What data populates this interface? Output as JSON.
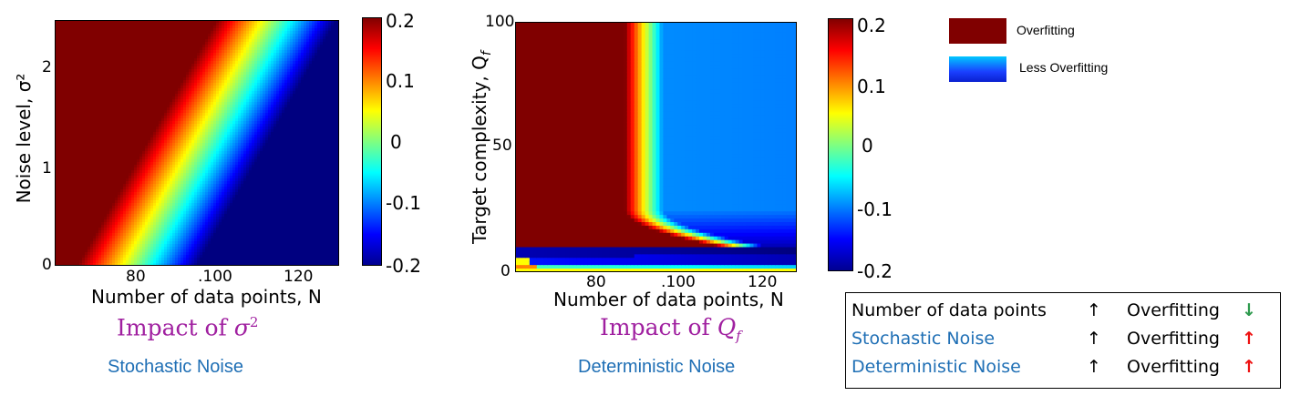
{
  "chart_data": [
    {
      "type": "heatmap",
      "title": "",
      "xlabel": "Number of data points, N",
      "ylabel": "Noise level, σ²",
      "xlim": [
        60,
        130
      ],
      "ylim": [
        0,
        2.5
      ],
      "x_ticks": [
        "80",
        ".100",
        "120"
      ],
      "y_ticks": [
        "0",
        "1",
        "2"
      ],
      "colorbar": {
        "range": [
          -0.2,
          0.2
        ],
        "ticks": [
          "0.2",
          "0.1",
          "0",
          "-0.1",
          "-0.2"
        ],
        "colormap": "jet"
      },
      "caption_prefix": "Impact of ",
      "caption_symbol": "σ",
      "caption_sup": "2",
      "subtitle": "Stochastic Noise"
    },
    {
      "type": "heatmap",
      "title": "",
      "xlabel": "Number of data points, N",
      "ylabel": "Target complexity, Q",
      "ylabel_sub": "f",
      "xlim": [
        60,
        130
      ],
      "ylim": [
        0,
        100
      ],
      "x_ticks": [
        "80",
        ".100",
        "120"
      ],
      "y_ticks": [
        "0",
        "50",
        "100"
      ],
      "colorbar": {
        "range": [
          -0.2,
          0.2
        ],
        "ticks": [
          "0.2",
          "0.1",
          "0",
          "-0.1",
          "-0.2"
        ],
        "colormap": "jet"
      },
      "caption_prefix": "Impact of ",
      "caption_symbol": "Q",
      "caption_sub": "f",
      "subtitle": "Deterministic Noise"
    }
  ],
  "legend": {
    "items": [
      {
        "label": "Overfitting",
        "color": "#800000"
      },
      {
        "label": "Less Overfitting",
        "color": "#1a40ff"
      }
    ]
  },
  "summary": {
    "rows": [
      {
        "label": "Number of data points",
        "arrow1": "↑",
        "result": "Overfitting",
        "arrow2": "↓",
        "label_color": "#000000",
        "arrow2_color": "#2e9a4e"
      },
      {
        "label": "Stochastic Noise",
        "arrow1": "↑",
        "result": "Overfitting",
        "arrow2": "↑",
        "label_color": "#1f6fb5",
        "arrow2_color": "#ee1111"
      },
      {
        "label": "Deterministic Noise",
        "arrow1": "↑",
        "result": "Overfitting",
        "arrow2": "↑",
        "label_color": "#1f6fb5",
        "arrow2_color": "#ee1111"
      }
    ]
  }
}
